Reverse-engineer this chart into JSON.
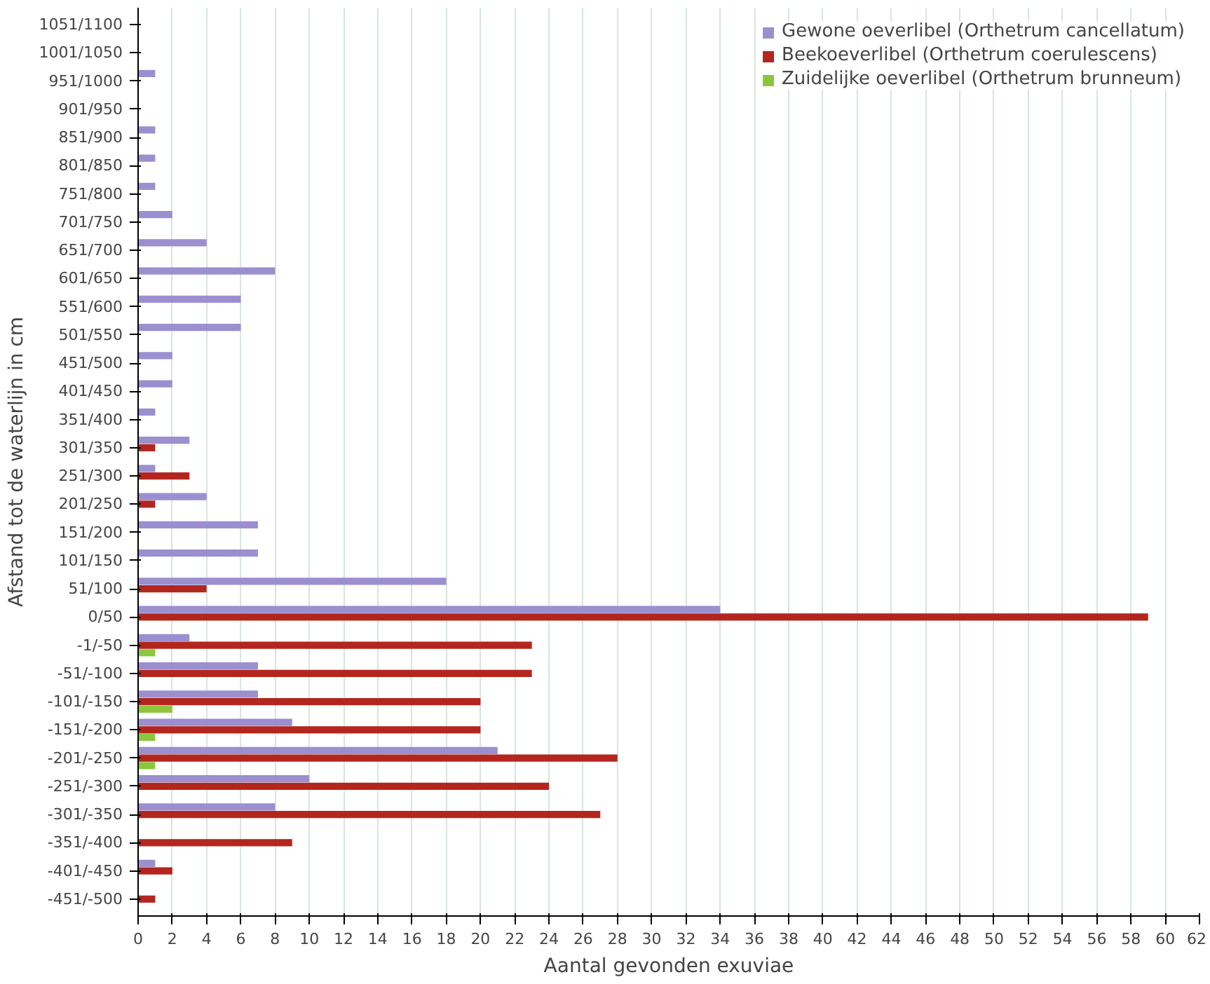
{
  "chart_data": {
    "type": "bar",
    "orientation": "horizontal",
    "xlabel": "Aantal gevonden exuviae",
    "ylabel": "Afstand tot de waterlijn in cm",
    "categories": [
      "1051/1100",
      "1001/1050",
      "951/1000",
      "901/950",
      "851/900",
      "801/850",
      "751/800",
      "701/750",
      "651/700",
      "601/650",
      "551/600",
      "501/550",
      "451/500",
      "401/450",
      "351/400",
      "301/350",
      "251/300",
      "201/250",
      "151/200",
      "101/150",
      "51/100",
      "0/50",
      "-1/-50",
      "-51/-100",
      "-101/-150",
      "-151/-200",
      "-201/-250",
      "-251/-300",
      "-301/-350",
      "-351/-400",
      "-401/-450",
      "-451/-500"
    ],
    "series": [
      {
        "name": "Gewone oeverlibel (Orthetrum cancellatum)",
        "color": "#9b8fd0",
        "values": [
          0,
          0,
          1,
          0,
          1,
          1,
          1,
          2,
          4,
          8,
          6,
          6,
          2,
          2,
          1,
          3,
          1,
          4,
          7,
          7,
          18,
          34,
          3,
          7,
          7,
          9,
          21,
          10,
          8,
          0,
          1,
          0
        ]
      },
      {
        "name": "Beekoeverlibel (Orthetrum coerulescens)",
        "color": "#b3261e",
        "values": [
          0,
          0,
          0,
          0,
          0,
          0,
          0,
          0,
          0,
          0,
          0,
          0,
          0,
          0,
          0,
          1,
          3,
          1,
          0,
          0,
          4,
          59,
          23,
          23,
          20,
          20,
          28,
          24,
          27,
          9,
          2,
          1
        ]
      },
      {
        "name": "Zuidelijke oeverlibel (Orthetrum brunneum)",
        "color": "#8cc63f",
        "values": [
          0,
          0,
          0,
          0,
          0,
          0,
          0,
          0,
          0,
          0,
          0,
          0,
          0,
          0,
          0,
          0,
          0,
          0,
          0,
          0,
          0,
          0,
          1,
          0,
          2,
          1,
          1,
          0,
          0,
          0,
          0,
          0
        ]
      }
    ],
    "xlim": [
      0,
      62
    ],
    "xticks": [
      0,
      2,
      4,
      6,
      8,
      10,
      12,
      14,
      16,
      18,
      20,
      22,
      24,
      26,
      28,
      30,
      32,
      34,
      36,
      38,
      40,
      42,
      44,
      46,
      48,
      50,
      52,
      54,
      56,
      58,
      60,
      62
    ],
    "grid": "x",
    "legend": "top right"
  }
}
